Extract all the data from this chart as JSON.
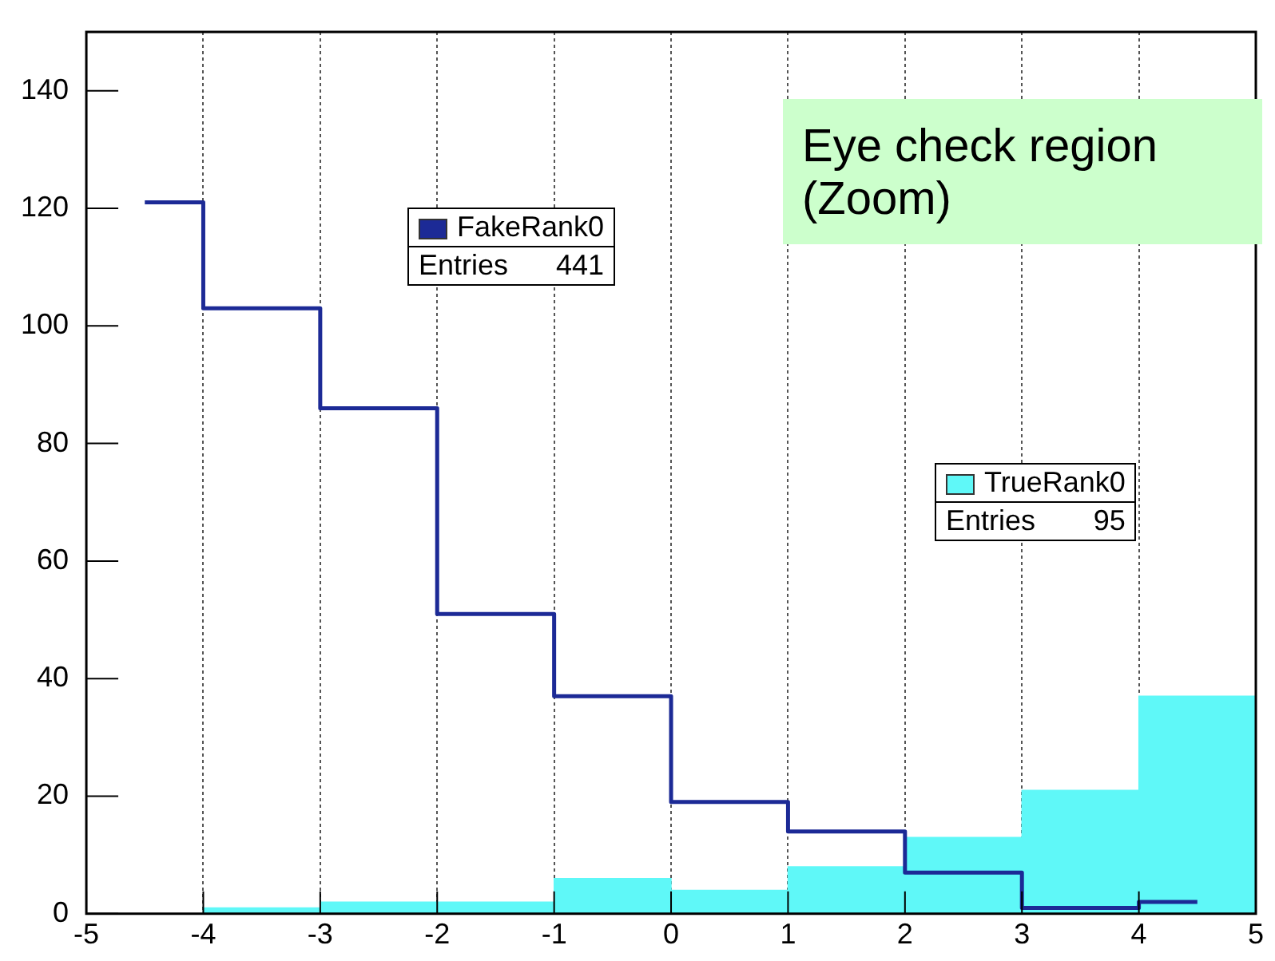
{
  "chart_data": {
    "type": "histogram",
    "bins": [
      -5,
      -4,
      -3,
      -2,
      -1,
      0,
      1,
      2,
      3,
      4,
      5
    ],
    "series": [
      {
        "name": "TrueRank0",
        "color": "#5ff8f8",
        "values": [
          0,
          1,
          2,
          2,
          6,
          4,
          8,
          13,
          21,
          37
        ]
      },
      {
        "name": "FakeRank0",
        "type": "step",
        "color": "#1c2a96",
        "x": [
          -4.5,
          -3.5,
          -2.5,
          -1.5,
          -0.5,
          0.5,
          1.5,
          2.5,
          3.5,
          4.5
        ],
        "values": [
          121,
          103,
          86,
          51,
          37,
          19,
          14,
          7,
          1,
          2
        ]
      }
    ],
    "xlim": [
      -5,
      5
    ],
    "xticks": [
      -5,
      -4,
      -3,
      -2,
      -1,
      0,
      1,
      2,
      3,
      4,
      5
    ],
    "ylim": [
      0,
      150
    ],
    "yticks": [
      0,
      20,
      40,
      60,
      80,
      100,
      120,
      140
    ],
    "grid": "x",
    "legend": "right",
    "annotations": [
      "Entries 95",
      "Entries 441",
      "Eye check region (Zoom)"
    ]
  }
}
